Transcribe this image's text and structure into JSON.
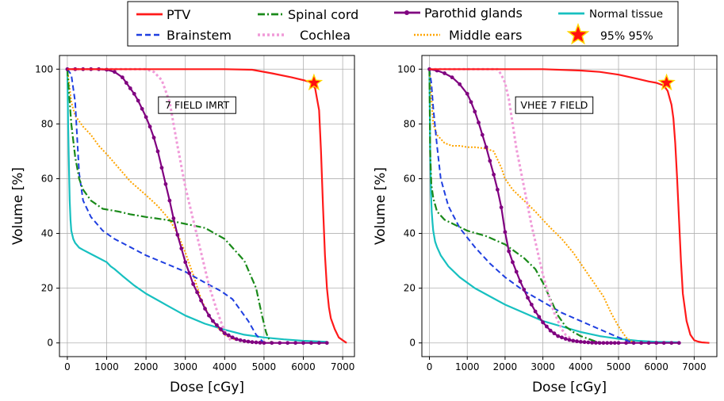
{
  "legend": {
    "items": [
      {
        "label": "PTV",
        "series": "PTV"
      },
      {
        "label": "Brainstem",
        "series": "Brainstem"
      },
      {
        "label": "Spinal cord",
        "series": "Spinal cord"
      },
      {
        "label": "Cochlea",
        "series": "Cochlea"
      },
      {
        "label": "Parothid glands",
        "series": "Parothid glands"
      },
      {
        "label": "Middle ears",
        "series": "Middle ears"
      },
      {
        "label": "Normal tissue",
        "series": "Normal tissue"
      },
      {
        "label": "95% 95%",
        "series": "marker"
      }
    ]
  },
  "styles": {
    "PTV": {
      "color": "#ff1a1a",
      "dash": "",
      "width": 2.2
    },
    "Brainstem": {
      "color": "#1f3fe0",
      "dash": "7,4",
      "width": 2
    },
    "Spinal cord": {
      "color": "#1a8a1a",
      "dash": "9,3,2,3",
      "width": 2.2
    },
    "Cochlea": {
      "color": "#f09ad8",
      "dash": "3,3",
      "width": 3
    },
    "Parothid glands": {
      "color": "#800080",
      "dash": "",
      "width": 2.2,
      "markers": true
    },
    "Middle ears": {
      "color": "#ffa500",
      "dash": "2,2",
      "width": 2
    },
    "Normal tissue": {
      "color": "#17c0c0",
      "dash": "",
      "width": 2.2
    },
    "marker_fill": "#ff1010",
    "marker_edge": "#ffd700"
  },
  "chart_data": [
    {
      "type": "line",
      "annotation": "7 FIELD IMRT",
      "xlabel": "Dose [cGy]",
      "ylabel": "Volume [%]",
      "xlim": [
        -200,
        7300
      ],
      "ylim": [
        -5,
        105
      ],
      "xticks": [
        0,
        1000,
        2000,
        3000,
        4000,
        5000,
        6000,
        7000
      ],
      "yticks": [
        0,
        20,
        40,
        60,
        80,
        100
      ],
      "grid": true,
      "marker_point": {
        "label": "95% 95%",
        "x": 6270,
        "y": 95
      },
      "series": [
        {
          "name": "PTV",
          "x": [
            0,
            1000,
            2000,
            3000,
            4000,
            4700,
            5200,
            5700,
            6000,
            6200,
            6300,
            6400,
            6450,
            6500,
            6550,
            6600,
            6650,
            6700,
            6800,
            6900,
            7000,
            7100
          ],
          "y": [
            100,
            100,
            100,
            100,
            100,
            99.8,
            98.5,
            97,
            96,
            95.2,
            93,
            85,
            70,
            50,
            32,
            20,
            13,
            9,
            5,
            2,
            1,
            0
          ]
        },
        {
          "name": "Brainstem",
          "x": [
            0,
            100,
            200,
            300,
            400,
            600,
            900,
            1200,
            1600,
            2000,
            2500,
            3000,
            3500,
            3900,
            4200,
            4400,
            4600,
            4800,
            5000
          ],
          "y": [
            100,
            98,
            88,
            62,
            52,
            46,
            41,
            38,
            35,
            32,
            29,
            26,
            22,
            19,
            16,
            12,
            8,
            3,
            0
          ]
        },
        {
          "name": "Spinal cord",
          "x": [
            0,
            50,
            100,
            200,
            300,
            400,
            600,
            900,
            1300,
            1600,
            2000,
            2500,
            3000,
            3500,
            4000,
            4500,
            4800,
            4950,
            5050,
            5100,
            5200
          ],
          "y": [
            100,
            90,
            80,
            68,
            60,
            56,
            52,
            49,
            48,
            47,
            46,
            45,
            43.5,
            42,
            38,
            30,
            20,
            10,
            4,
            2,
            0
          ]
        },
        {
          "name": "Cochlea",
          "x": [
            0,
            500,
            1000,
            1500,
            2000,
            2200,
            2400,
            2600,
            2800,
            3000,
            3200,
            3400,
            3600,
            3800,
            3950,
            4050,
            4150
          ],
          "y": [
            100,
            100,
            100,
            100,
            100,
            99,
            96,
            88,
            72,
            57,
            45,
            33,
            21,
            12,
            6,
            3,
            1
          ]
        },
        {
          "name": "Parothid glands",
          "x": [
            0,
            200,
            400,
            600,
            800,
            1000,
            1200,
            1400,
            1500,
            1600,
            1700,
            1800,
            1900,
            2000,
            2100,
            2200,
            2300,
            2400,
            2500,
            2600,
            2700,
            2800,
            2900,
            3000,
            3100,
            3200,
            3300,
            3400,
            3500,
            3600,
            3700,
            3800,
            3900,
            4000,
            4100,
            4200,
            4300,
            4400,
            4500,
            4600,
            4700,
            4800,
            4900,
            5000,
            5200,
            5400,
            5600,
            5800,
            6000,
            6200,
            6400,
            6600
          ],
          "y": [
            100,
            100,
            100,
            100,
            100,
            99.8,
            99,
            97,
            95,
            93,
            91,
            88.5,
            85.5,
            82.5,
            79,
            75,
            70,
            64,
            58,
            52,
            45.5,
            39.5,
            34.5,
            29.5,
            25.5,
            21.5,
            18.5,
            15.5,
            12.5,
            10,
            8,
            6.5,
            5,
            3.5,
            2.8,
            2,
            1.4,
            1,
            0.7,
            0.5,
            0.3,
            0.2,
            0.1,
            0,
            0,
            0,
            0,
            0,
            0,
            0,
            0,
            0
          ]
        },
        {
          "name": "Middle ears",
          "x": [
            0,
            100,
            200,
            400,
            600,
            800,
            1000,
            1300,
            1600,
            2000,
            2300,
            2600,
            2800,
            3000,
            3200,
            3400,
            3600,
            3800,
            4000,
            4200,
            4400,
            4600,
            4800,
            5000,
            5200
          ],
          "y": [
            100,
            88,
            83,
            79,
            76,
            72,
            69,
            64,
            59,
            54,
            50,
            45,
            40,
            33,
            25,
            16,
            10,
            6,
            3,
            1.5,
            0.8,
            0.4,
            0.2,
            0.1,
            0
          ]
        },
        {
          "name": "Normal tissue",
          "x": [
            0,
            20,
            40,
            60,
            80,
            100,
            150,
            200,
            300,
            400,
            600,
            800,
            1000,
            1100,
            1200,
            1400,
            1700,
            2000,
            2500,
            3000,
            3500,
            4000,
            4500,
            5000,
            5500,
            6000,
            6600
          ],
          "y": [
            100,
            80,
            65,
            52,
            45,
            41,
            38,
            36.5,
            34.8,
            34,
            32.5,
            31,
            29.5,
            28,
            27,
            24.5,
            21,
            18,
            14,
            10,
            7,
            4.8,
            3,
            2,
            1.3,
            0.8,
            0.4
          ]
        }
      ]
    },
    {
      "type": "line",
      "annotation": "VHEE 7 FIELD",
      "xlabel": "Dose [cGy]",
      "ylabel": "Volume [%]",
      "xlim": [
        -200,
        7600
      ],
      "ylim": [
        -5,
        105
      ],
      "xticks": [
        0,
        1000,
        2000,
        3000,
        4000,
        5000,
        6000,
        7000
      ],
      "yticks": [
        0,
        20,
        40,
        60,
        80,
        100
      ],
      "grid": true,
      "marker_point": {
        "label": "95% 95%",
        "x": 6270,
        "y": 95
      },
      "series": [
        {
          "name": "PTV",
          "x": [
            0,
            1000,
            2000,
            3000,
            4000,
            4500,
            5000,
            5500,
            5800,
            6000,
            6200,
            6300,
            6400,
            6450,
            6500,
            6550,
            6600,
            6650,
            6700,
            6800,
            6900,
            7000,
            7100,
            7200,
            7400
          ],
          "y": [
            100,
            100,
            100,
            100,
            99.5,
            99,
            98,
            96.5,
            95.5,
            95,
            94,
            92,
            87,
            82,
            73,
            60,
            45,
            30,
            18,
            8,
            3,
            1,
            0.5,
            0.2,
            0
          ]
        },
        {
          "name": "Brainstem",
          "x": [
            0,
            50,
            100,
            200,
            300,
            500,
            800,
            1200,
            1600,
            2000,
            2500,
            3000,
            3500,
            4000,
            4500,
            5000,
            5200,
            5400
          ],
          "y": [
            100,
            95,
            86,
            72,
            60,
            50,
            42,
            35,
            29,
            24,
            19,
            15,
            11,
            8,
            5,
            2,
            1,
            0
          ]
        },
        {
          "name": "Spinal cord",
          "x": [
            0,
            20,
            50,
            100,
            200,
            400,
            700,
            1000,
            1500,
            2000,
            2500,
            2800,
            3000,
            3200,
            3400,
            3600,
            3800,
            4000,
            4200,
            4400,
            4600
          ],
          "y": [
            100,
            70,
            58,
            53,
            48,
            45,
            43,
            41,
            39,
            36,
            31,
            27,
            22,
            16,
            10,
            6,
            4,
            2.5,
            1.5,
            0.5,
            0
          ]
        },
        {
          "name": "Cochlea",
          "x": [
            0,
            500,
            1000,
            1500,
            1800,
            1900,
            2000,
            2100,
            2200,
            2300,
            2400,
            2500,
            2600,
            2700,
            2800,
            2900,
            3000,
            3100,
            3200,
            3300,
            3400,
            3500,
            3600,
            3700,
            3800,
            3900,
            4000
          ],
          "y": [
            100,
            100,
            100,
            100,
            100,
            98,
            95,
            89,
            80,
            71,
            64,
            57,
            50,
            43,
            37,
            31,
            25,
            20,
            15,
            11,
            8,
            5,
            3,
            2,
            1,
            0.5,
            0
          ]
        },
        {
          "name": "Parothid glands",
          "x": [
            0,
            200,
            400,
            600,
            800,
            1000,
            1100,
            1200,
            1300,
            1400,
            1500,
            1600,
            1700,
            1800,
            1900,
            2000,
            2100,
            2200,
            2300,
            2400,
            2500,
            2600,
            2700,
            2800,
            2900,
            3000,
            3100,
            3200,
            3300,
            3400,
            3500,
            3600,
            3700,
            3800,
            3900,
            4000,
            4100,
            4200,
            4300,
            4400,
            4500,
            4600,
            4700,
            4800,
            4900,
            5000,
            5200,
            5400,
            5600,
            5800,
            6000,
            6200,
            6400,
            6600
          ],
          "y": [
            100,
            99.5,
            98.5,
            97,
            94.5,
            91,
            88,
            84.5,
            80.5,
            76,
            71.5,
            66.5,
            61.5,
            56,
            49.5,
            40.5,
            33.5,
            29.5,
            26,
            22.5,
            19.5,
            16.5,
            14,
            11.5,
            9.5,
            7.5,
            6,
            4.5,
            3.5,
            2.5,
            2,
            1.5,
            1.1,
            0.8,
            0.6,
            0.4,
            0.3,
            0.2,
            0.1,
            0.05,
            0,
            0,
            0,
            0,
            0,
            0,
            0,
            0,
            0,
            0,
            0,
            0,
            0,
            0
          ]
        },
        {
          "name": "Middle ears",
          "x": [
            0,
            100,
            200,
            400,
            600,
            800,
            1000,
            1200,
            1500,
            1700,
            1800,
            1900,
            2000,
            2200,
            2500,
            2800,
            3000,
            3200,
            3500,
            3800,
            4000,
            4200,
            4400,
            4600,
            4800,
            5000,
            5200,
            5300,
            5400
          ],
          "y": [
            100,
            80,
            76,
            73,
            72,
            72,
            71.5,
            71.5,
            71,
            70,
            67,
            64,
            60,
            56,
            52,
            48,
            45,
            42,
            38,
            33,
            29,
            25,
            21,
            17,
            11,
            6,
            2,
            1,
            0
          ]
        },
        {
          "name": "Normal tissue",
          "x": [
            0,
            20,
            40,
            60,
            80,
            100,
            150,
            200,
            300,
            500,
            800,
            1200,
            1600,
            2000,
            2500,
            3000,
            3500,
            4000,
            4500,
            5000,
            5500,
            6000,
            6600
          ],
          "y": [
            100,
            70,
            55,
            48,
            44,
            41,
            37,
            35,
            32,
            28,
            24,
            20,
            17,
            14,
            11,
            8,
            6,
            4,
            2.5,
            1.5,
            0.8,
            0.4,
            0.2
          ]
        }
      ]
    }
  ]
}
